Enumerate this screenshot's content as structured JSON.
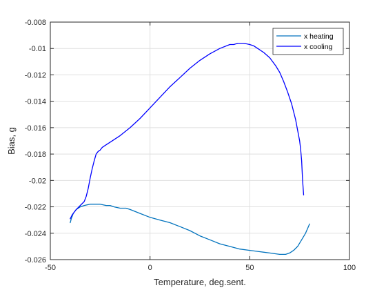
{
  "chart_data": {
    "type": "line",
    "title": "",
    "xlabel": "Temperature, deg.sent.",
    "ylabel": "Bias, g",
    "xlim": [
      -50,
      100
    ],
    "ylim": [
      -0.026,
      -0.008
    ],
    "xticks": [
      -50,
      0,
      50,
      100
    ],
    "yticks": [
      -0.026,
      -0.024,
      -0.022,
      -0.02,
      -0.018,
      -0.016,
      -0.014,
      -0.012,
      -0.01,
      -0.008
    ],
    "xtick_labels": [
      "-50",
      "0",
      "50",
      "100"
    ],
    "ytick_labels": [
      "-0.026",
      "-0.024",
      "-0.022",
      "-0.02",
      "-0.018",
      "-0.016",
      "-0.014",
      "-0.012",
      "-0.01",
      "-0.008"
    ],
    "grid": true,
    "legend_position": "top-right",
    "series": [
      {
        "name": "x heating",
        "color": "#0072BD",
        "x": [
          -40,
          -39.5,
          -38.5,
          -37,
          -35,
          -33,
          -30,
          -27,
          -25,
          -22,
          -20,
          -18,
          -15,
          -12,
          -10,
          -5,
          0,
          5,
          10,
          15,
          20,
          25,
          30,
          35,
          40,
          45,
          50,
          55,
          60,
          65,
          68,
          70,
          72,
          74,
          76,
          78,
          80
        ],
        "y": [
          -0.0232,
          -0.0229,
          -0.0225,
          -0.0222,
          -0.022,
          -0.0219,
          -0.0218,
          -0.0218,
          -0.0218,
          -0.0219,
          -0.0219,
          -0.022,
          -0.0221,
          -0.0221,
          -0.0222,
          -0.0225,
          -0.0228,
          -0.023,
          -0.0232,
          -0.0235,
          -0.0238,
          -0.0242,
          -0.0245,
          -0.0248,
          -0.025,
          -0.0252,
          -0.0253,
          -0.0254,
          -0.0255,
          -0.0256,
          -0.0256,
          -0.0255,
          -0.0253,
          -0.025,
          -0.0245,
          -0.024,
          -0.0233
        ]
      },
      {
        "name": "x cooling",
        "color": "#0000FF",
        "x": [
          77,
          76.5,
          76,
          75.5,
          75,
          74,
          73,
          71,
          69,
          67,
          65,
          63,
          60,
          57,
          54,
          52,
          50,
          47,
          44,
          42,
          40,
          35,
          30,
          25,
          20,
          15,
          10,
          5,
          0,
          -5,
          -10,
          -15,
          -20,
          -22,
          -24,
          -25,
          -26,
          -27,
          -28,
          -29,
          -30,
          -31,
          -32,
          -33,
          -35,
          -37,
          -39,
          -40
        ],
        "y": [
          -0.0211,
          -0.02,
          -0.0185,
          -0.0176,
          -0.017,
          -0.0162,
          -0.0154,
          -0.0142,
          -0.0133,
          -0.0125,
          -0.0118,
          -0.0113,
          -0.0107,
          -0.0103,
          -0.01,
          -0.0098,
          -0.0097,
          -0.0096,
          -0.0096,
          -0.0097,
          -0.0097,
          -0.01,
          -0.0104,
          -0.0109,
          -0.0115,
          -0.0122,
          -0.0129,
          -0.0137,
          -0.0145,
          -0.0153,
          -0.016,
          -0.0166,
          -0.0171,
          -0.0173,
          -0.0175,
          -0.0177,
          -0.0178,
          -0.018,
          -0.0185,
          -0.0191,
          -0.0198,
          -0.0206,
          -0.0212,
          -0.0216,
          -0.0219,
          -0.0222,
          -0.0226,
          -0.0229
        ]
      }
    ]
  }
}
